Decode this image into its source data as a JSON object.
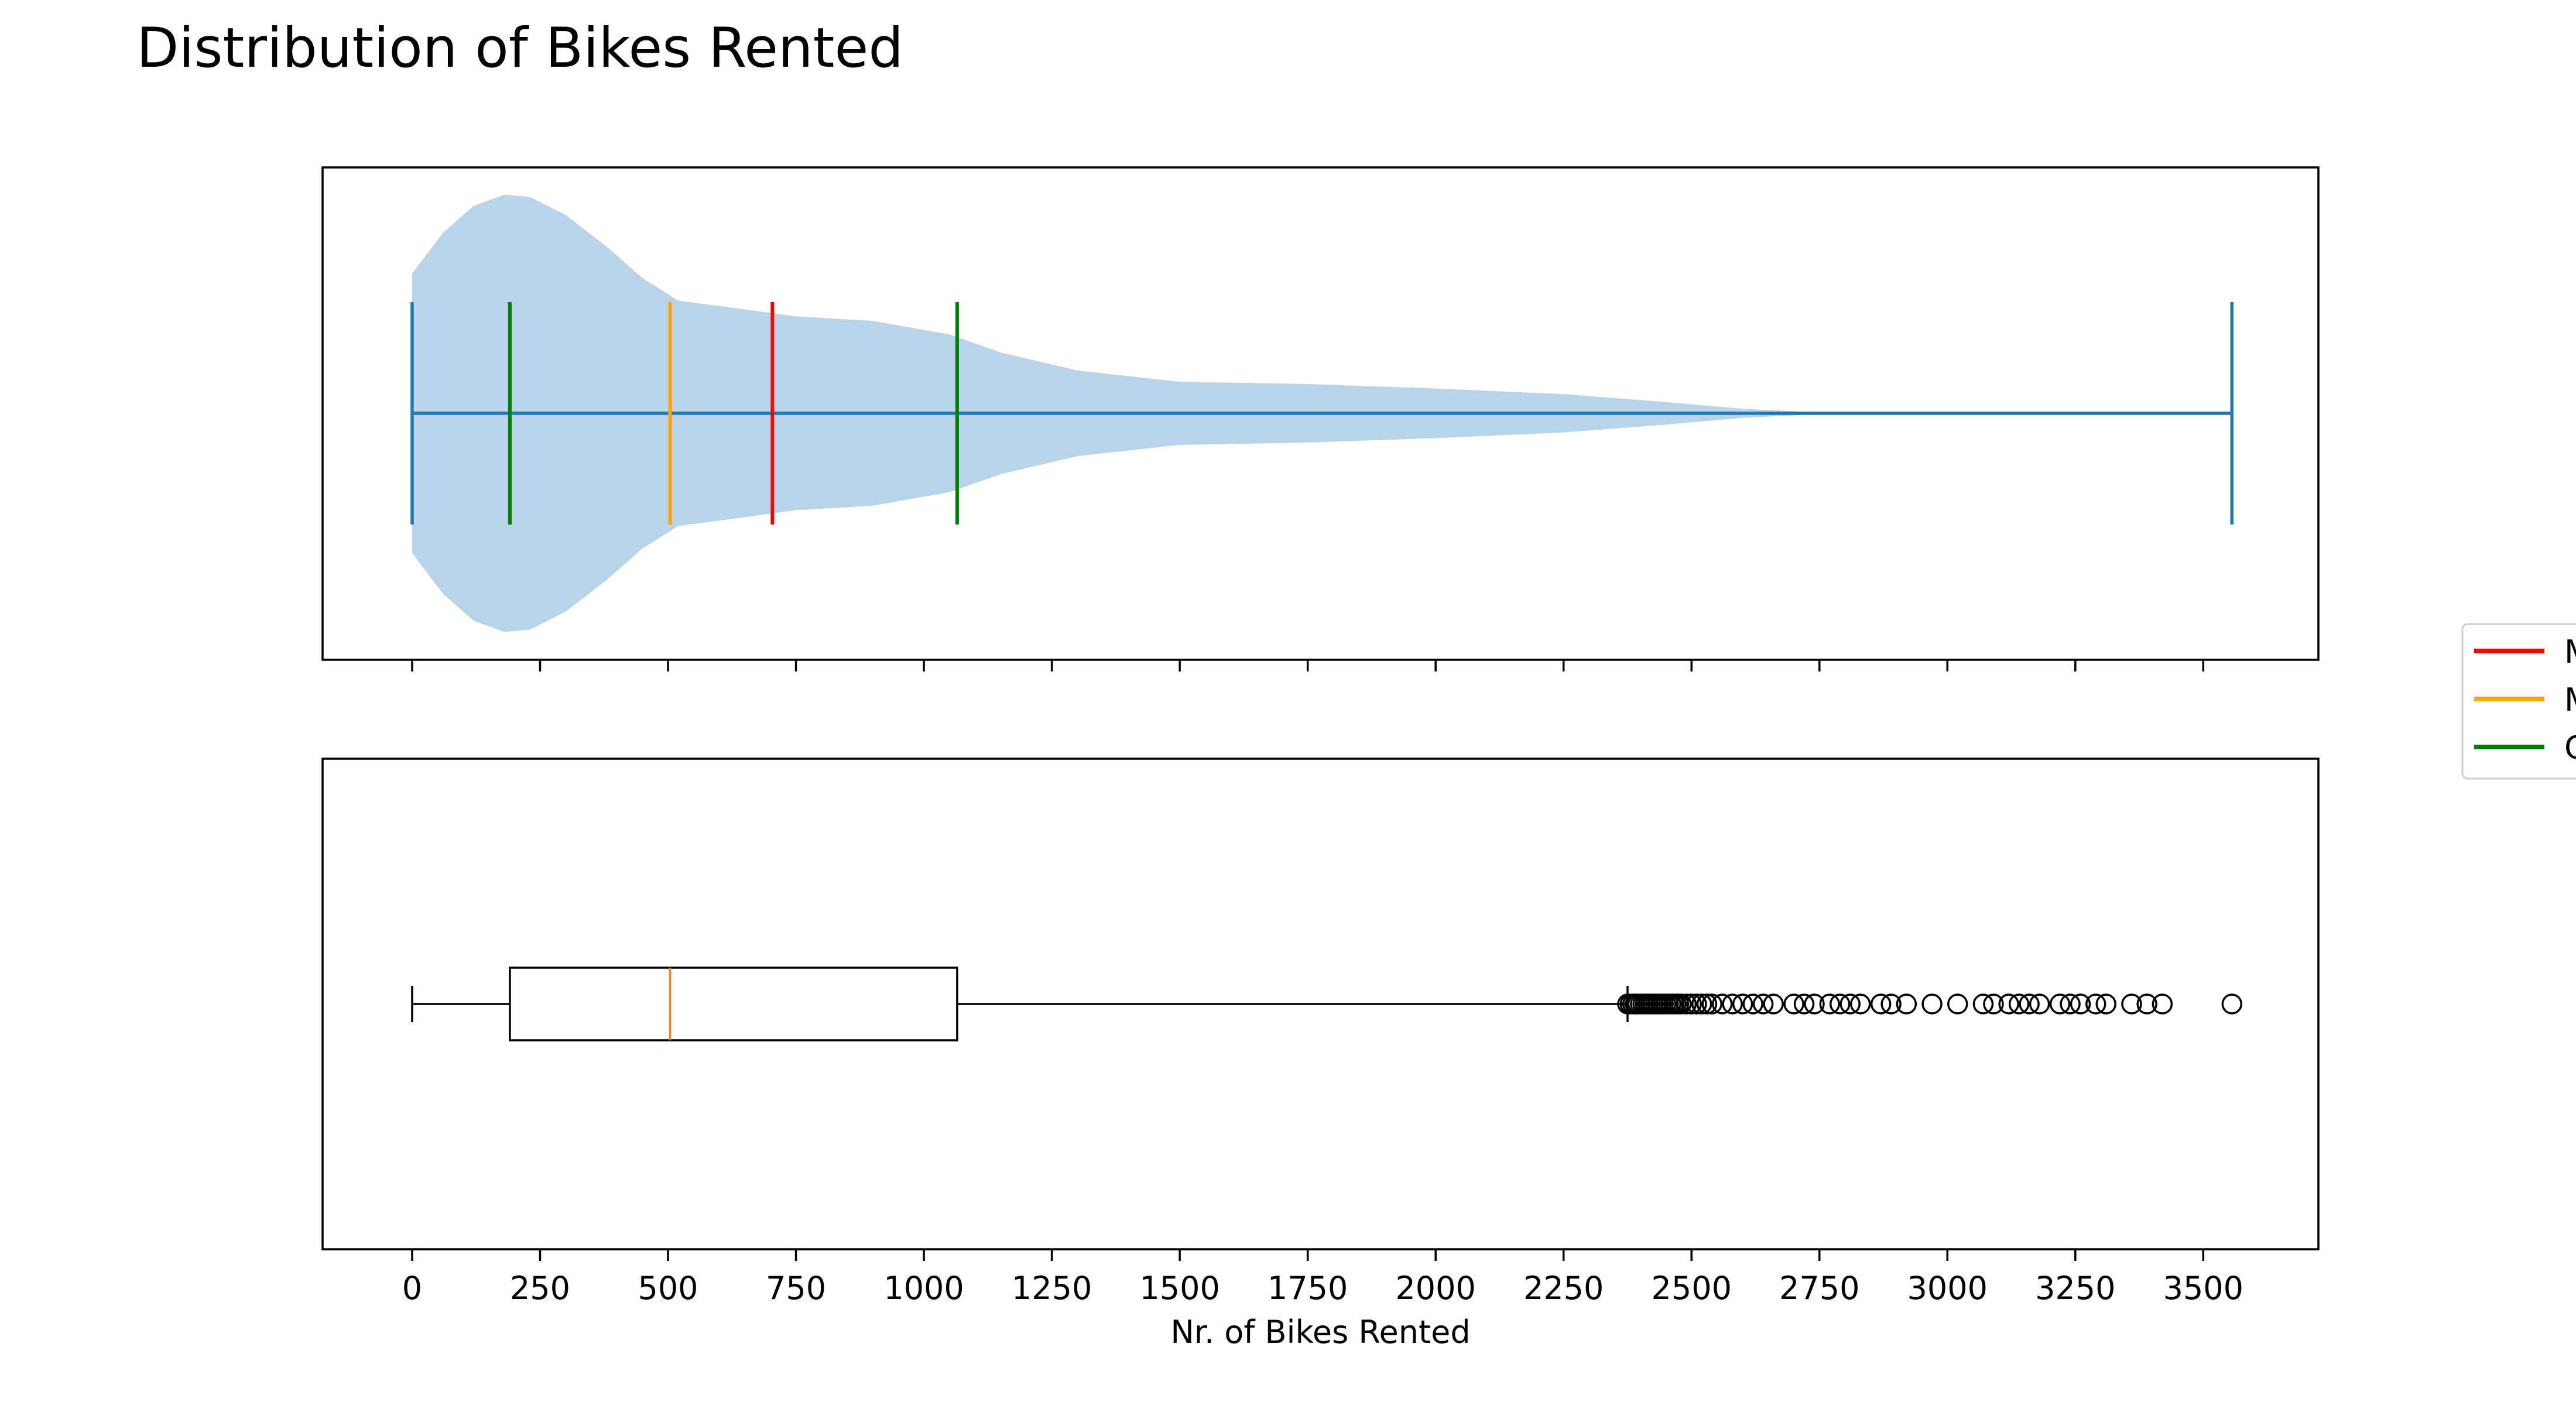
{
  "chart_data": {
    "type": "violin+box",
    "title": "Distribution of Bikes Rented",
    "xlabel": "Nr. of Bikes Rented",
    "ylabel": "",
    "xlim": [
      -175,
      3725
    ],
    "xticks": [
      0,
      250,
      500,
      750,
      1000,
      1250,
      1500,
      1750,
      2000,
      2250,
      2500,
      2750,
      3000,
      3250,
      3500
    ],
    "grid": false,
    "legend": {
      "placement": "right, outside (clipped at figure edge)",
      "entries": [
        {
          "label": "M",
          "color": "#ff0000"
        },
        {
          "label": "M",
          "color": "#ffa500"
        },
        {
          "label": "Q",
          "color": "#008000"
        }
      ]
    },
    "violin": {
      "min": 0,
      "max": 3556,
      "mean": 704,
      "median": 504,
      "q1": 191,
      "q3": 1065,
      "body_color": "#b9d4e8",
      "line_color": "#1f77b4",
      "density_profile": [
        {
          "x": 0,
          "half_width": 0.62
        },
        {
          "x": 60,
          "half_width": 0.8
        },
        {
          "x": 120,
          "half_width": 0.92
        },
        {
          "x": 180,
          "half_width": 0.97
        },
        {
          "x": 230,
          "half_width": 0.96
        },
        {
          "x": 300,
          "half_width": 0.88
        },
        {
          "x": 380,
          "half_width": 0.74
        },
        {
          "x": 450,
          "half_width": 0.6
        },
        {
          "x": 520,
          "half_width": 0.5
        },
        {
          "x": 620,
          "half_width": 0.47
        },
        {
          "x": 750,
          "half_width": 0.43
        },
        {
          "x": 900,
          "half_width": 0.41
        },
        {
          "x": 1050,
          "half_width": 0.35
        },
        {
          "x": 1150,
          "half_width": 0.27
        },
        {
          "x": 1300,
          "half_width": 0.19
        },
        {
          "x": 1500,
          "half_width": 0.14
        },
        {
          "x": 1750,
          "half_width": 0.13
        },
        {
          "x": 2000,
          "half_width": 0.11
        },
        {
          "x": 2250,
          "half_width": 0.085
        },
        {
          "x": 2450,
          "half_width": 0.05
        },
        {
          "x": 2600,
          "half_width": 0.02
        },
        {
          "x": 2750,
          "half_width": 0.004
        },
        {
          "x": 3000,
          "half_width": 0.001
        },
        {
          "x": 3556,
          "half_width": 0.0
        }
      ]
    },
    "boxplot": {
      "whisker_low": 0,
      "q1": 191,
      "median": 504,
      "q3": 1065,
      "whisker_high": 2375,
      "median_color": "#ff7f0e",
      "outliers": [
        2375,
        2380,
        2385,
        2390,
        2395,
        2400,
        2405,
        2410,
        2415,
        2420,
        2425,
        2430,
        2435,
        2440,
        2445,
        2450,
        2455,
        2460,
        2465,
        2470,
        2475,
        2480,
        2490,
        2500,
        2510,
        2520,
        2530,
        2540,
        2560,
        2580,
        2600,
        2620,
        2640,
        2660,
        2700,
        2720,
        2740,
        2770,
        2790,
        2810,
        2830,
        2870,
        2890,
        2920,
        2970,
        3020,
        3070,
        3090,
        3120,
        3140,
        3160,
        3180,
        3220,
        3240,
        3260,
        3290,
        3310,
        3360,
        3390,
        3420,
        3556
      ]
    }
  }
}
